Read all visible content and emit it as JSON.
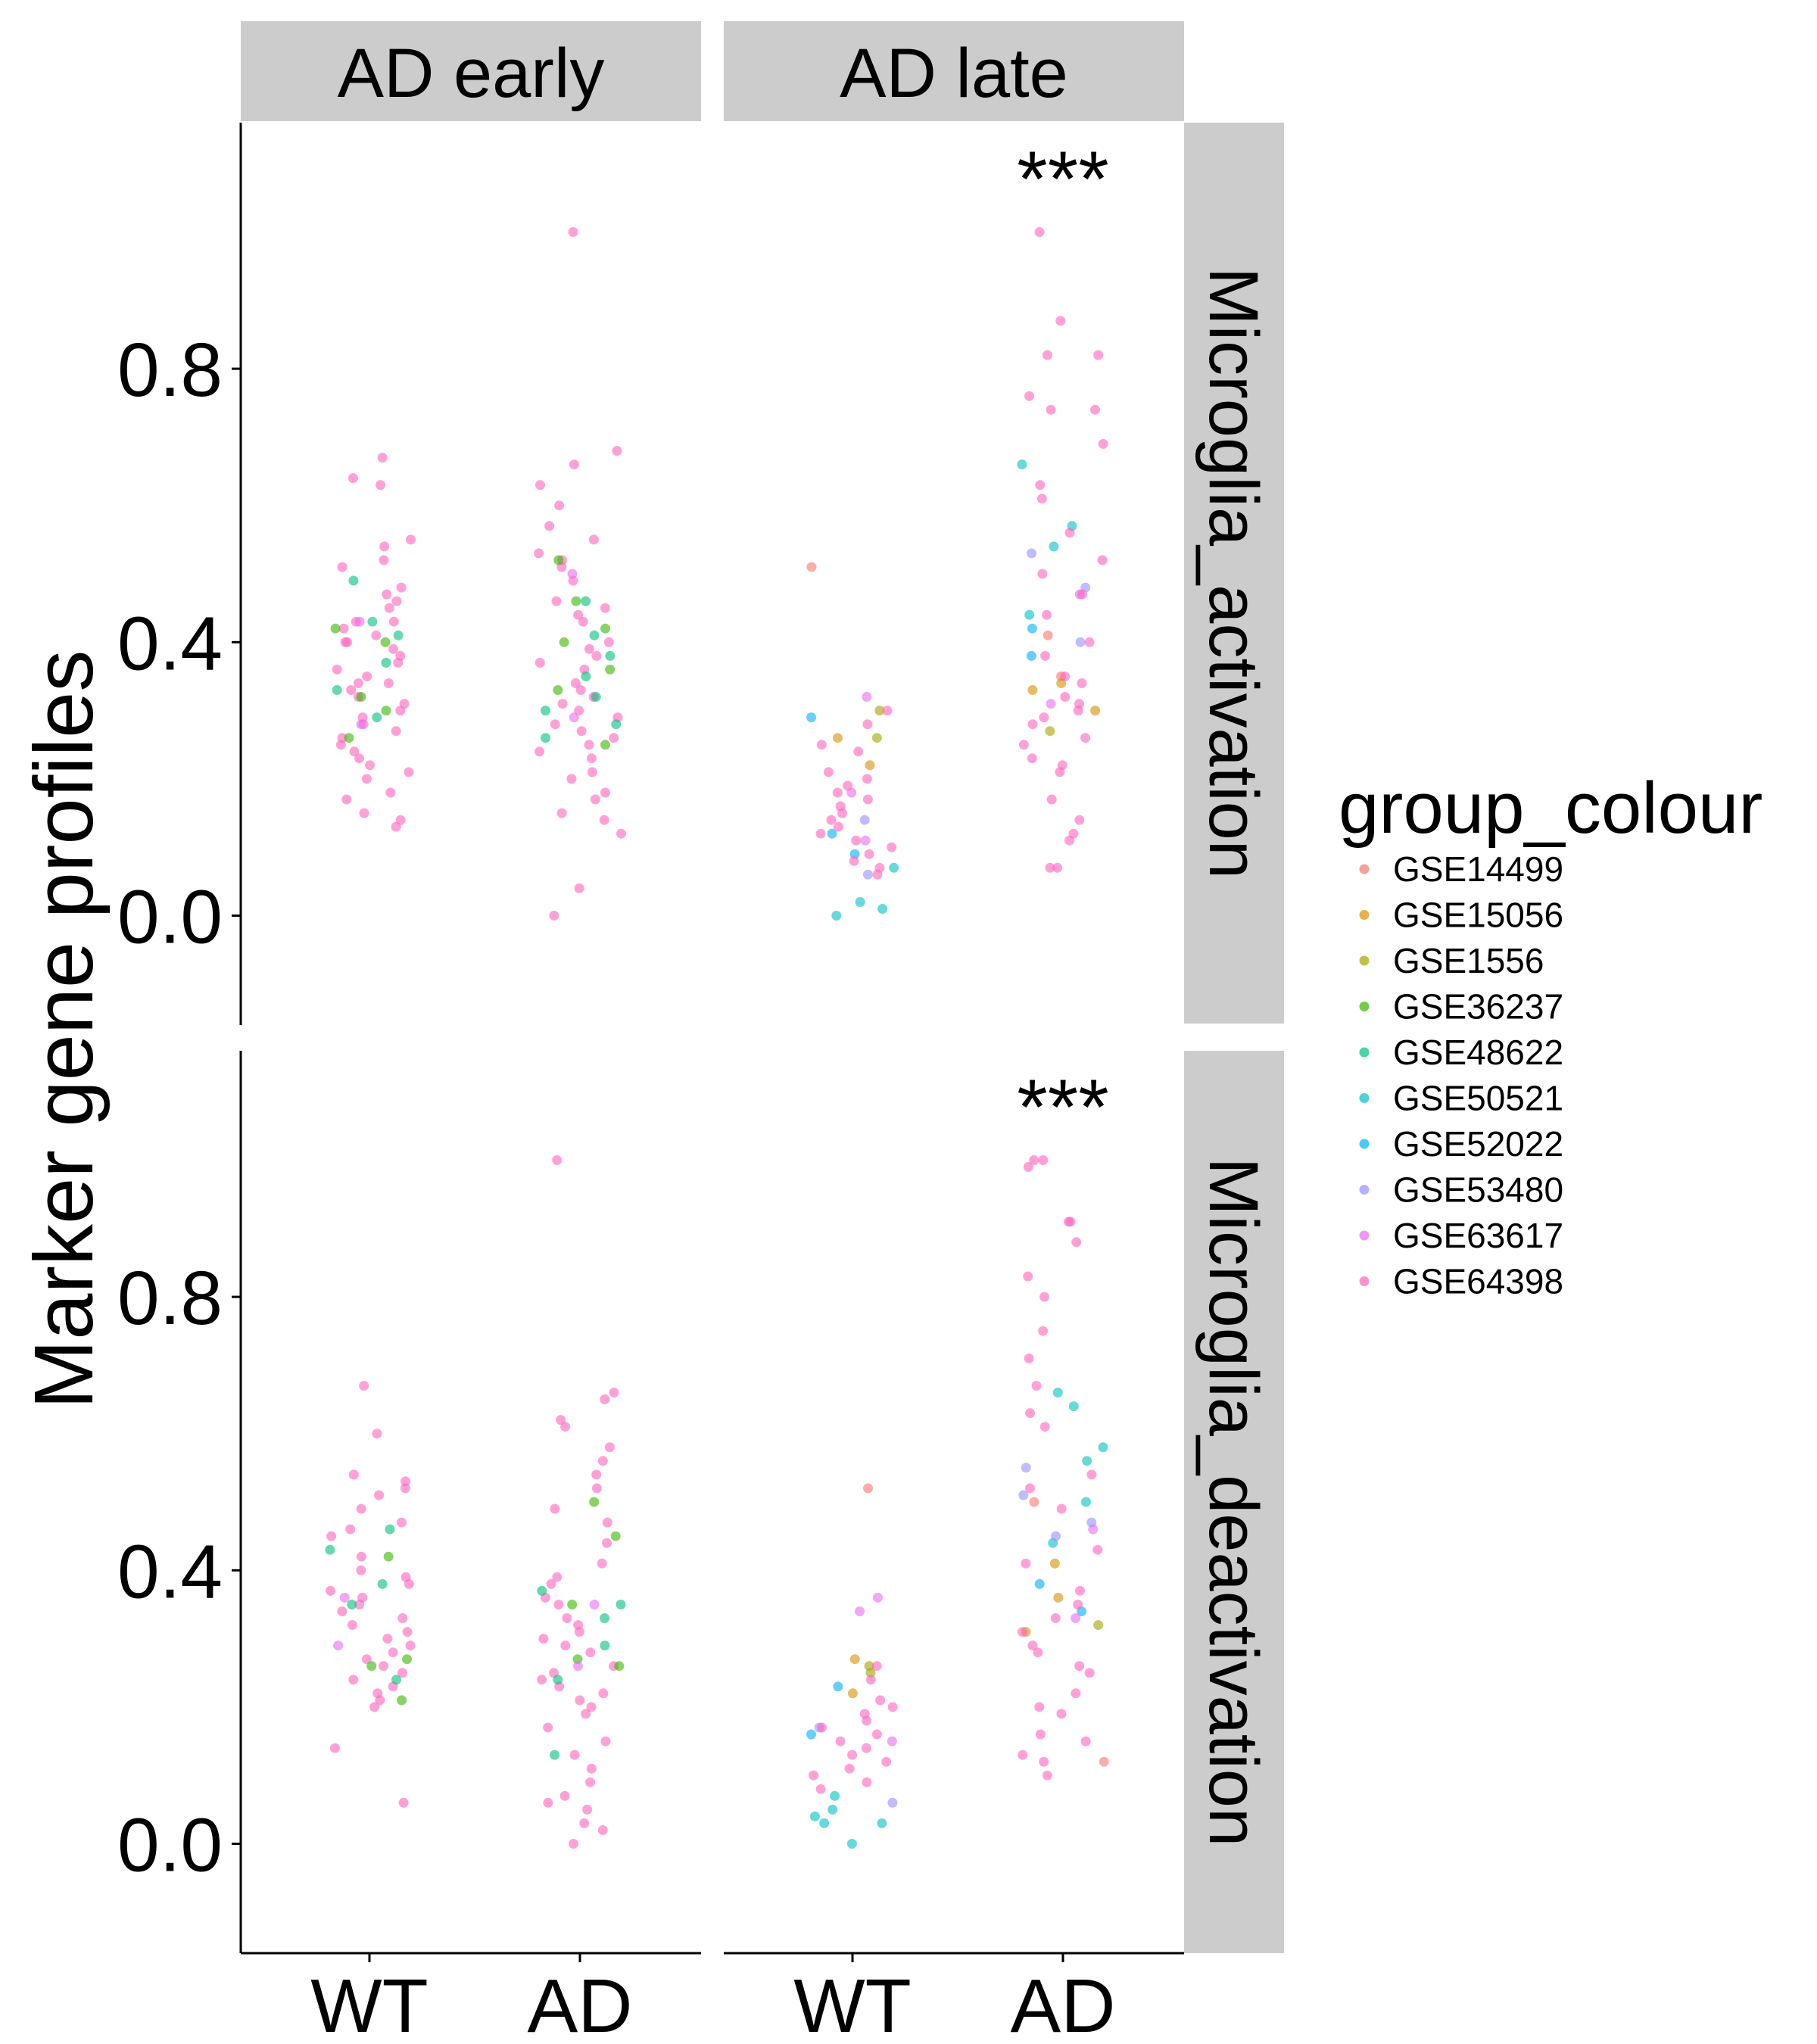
{
  "chart_data": {
    "type": "scatter",
    "ylabel": "Marker gene profiles",
    "x_categories": [
      "WT",
      "AD"
    ],
    "column_facets": [
      "AD early",
      "AD late"
    ],
    "row_facets": [
      "Microglia_activation",
      "Microglia_deactivation"
    ],
    "y_ticks": [
      "0.0",
      "0.4",
      "0.8"
    ],
    "y_tick_values": [
      0.0,
      0.4,
      0.8
    ],
    "ylim": [
      -0.16,
      1.16
    ],
    "significance_marker": "***",
    "legend": {
      "title": "group_colour",
      "position": "right",
      "entries": [
        {
          "label": "GSE14499",
          "color": "#F8766D"
        },
        {
          "label": "GSE15056",
          "color": "#D89000"
        },
        {
          "label": "GSE1556",
          "color": "#A3A500"
        },
        {
          "label": "GSE36237",
          "color": "#39B600"
        },
        {
          "label": "GSE48622",
          "color": "#00BF7D"
        },
        {
          "label": "GSE50521",
          "color": "#00BFC4"
        },
        {
          "label": "GSE52022",
          "color": "#00B0F6"
        },
        {
          "label": "GSE53480",
          "color": "#9590FF"
        },
        {
          "label": "GSE63617",
          "color": "#E76BF3"
        },
        {
          "label": "GSE64398",
          "color": "#FF62BC"
        }
      ]
    },
    "panels": [
      {
        "row": "Microglia_activation",
        "col": "AD early",
        "significance": "",
        "groups": [
          {
            "x": "WT",
            "series": {
              "GSE64398": [
                0.67,
                0.64,
                0.63,
                0.55,
                0.54,
                0.52,
                0.51,
                0.48,
                0.47,
                0.46,
                0.45,
                0.43,
                0.43,
                0.42,
                0.41,
                0.4,
                0.4,
                0.39,
                0.38,
                0.37,
                0.36,
                0.35,
                0.34,
                0.34,
                0.33,
                0.32,
                0.31,
                0.3,
                0.29,
                0.28,
                0.27,
                0.26,
                0.25,
                0.24,
                0.23,
                0.22,
                0.21,
                0.2,
                0.18,
                0.17,
                0.15,
                0.14,
                0.13
              ],
              "GSE48622": [
                0.49,
                0.43,
                0.41,
                0.37,
                0.33,
                0.29
              ],
              "GSE36237": [
                0.42,
                0.4,
                0.32,
                0.3,
                0.26
              ],
              "GSE63617": [
                0.43,
                0.28
              ]
            }
          },
          {
            "x": "AD",
            "series": {
              "GSE64398": [
                1.0,
                0.68,
                0.66,
                0.63,
                0.6,
                0.57,
                0.55,
                0.53,
                0.52,
                0.51,
                0.49,
                0.46,
                0.45,
                0.44,
                0.43,
                0.4,
                0.39,
                0.38,
                0.37,
                0.36,
                0.34,
                0.33,
                0.32,
                0.31,
                0.3,
                0.29,
                0.28,
                0.27,
                0.26,
                0.25,
                0.24,
                0.23,
                0.21,
                0.2,
                0.18,
                0.17,
                0.15,
                0.14,
                0.12,
                0.04,
                0.0
              ],
              "GSE48622": [
                0.46,
                0.41,
                0.38,
                0.35,
                0.32,
                0.3,
                0.28,
                0.26
              ],
              "GSE36237": [
                0.52,
                0.46,
                0.42,
                0.4,
                0.36,
                0.33,
                0.25
              ],
              "GSE63617": [
                0.5,
                0.29
              ]
            }
          }
        ]
      },
      {
        "row": "Microglia_activation",
        "col": "AD late",
        "significance": "***",
        "groups": [
          {
            "x": "WT",
            "series": {
              "GSE14499": [
                0.51
              ],
              "GSE15056": [
                0.26,
                0.22
              ],
              "GSE1556": [
                0.3,
                0.26
              ],
              "GSE50521": [
                0.07,
                0.02,
                0.01,
                0.0
              ],
              "GSE52022": [
                0.29,
                0.12,
                0.09
              ],
              "GSE53480": [
                0.14,
                0.06
              ],
              "GSE63617": [
                0.32,
                0.18,
                0.11
              ],
              "GSE64398": [
                0.3,
                0.28,
                0.25,
                0.24,
                0.21,
                0.2,
                0.19,
                0.18,
                0.17,
                0.16,
                0.15,
                0.14,
                0.13,
                0.12,
                0.11,
                0.1,
                0.09,
                0.08,
                0.07,
                0.06
              ]
            }
          },
          {
            "x": "AD",
            "series": {
              "GSE14499": [
                0.41,
                0.35
              ],
              "GSE15056": [
                0.34,
                0.33,
                0.3
              ],
              "GSE1556": [
                0.27
              ],
              "GSE50521": [
                0.66,
                0.57,
                0.54,
                0.44
              ],
              "GSE52022": [
                0.42,
                0.38
              ],
              "GSE53480": [
                0.53,
                0.48,
                0.4
              ],
              "GSE63617": [
                0.47,
                0.31
              ],
              "GSE64398": [
                1.0,
                0.87,
                0.82,
                0.82,
                0.76,
                0.74,
                0.74,
                0.69,
                0.63,
                0.61,
                0.56,
                0.52,
                0.5,
                0.47,
                0.44,
                0.4,
                0.38,
                0.35,
                0.34,
                0.32,
                0.31,
                0.3,
                0.29,
                0.28,
                0.26,
                0.25,
                0.23,
                0.22,
                0.21,
                0.17,
                0.14,
                0.12,
                0.11,
                0.07,
                0.07
              ]
            }
          }
        ]
      },
      {
        "row": "Microglia_deactivation",
        "col": "AD early",
        "significance": "",
        "groups": [
          {
            "x": "WT",
            "series": {
              "GSE64398": [
                0.67,
                0.6,
                0.54,
                0.53,
                0.52,
                0.51,
                0.49,
                0.47,
                0.46,
                0.45,
                0.42,
                0.4,
                0.39,
                0.38,
                0.37,
                0.36,
                0.35,
                0.34,
                0.33,
                0.32,
                0.31,
                0.3,
                0.29,
                0.28,
                0.27,
                0.26,
                0.25,
                0.24,
                0.23,
                0.22,
                0.21,
                0.2,
                0.14,
                0.06
              ],
              "GSE48622": [
                0.46,
                0.43,
                0.38,
                0.35,
                0.24
              ],
              "GSE36237": [
                0.42,
                0.27,
                0.26,
                0.21
              ],
              "GSE63617": [
                0.36,
                0.29
              ]
            }
          },
          {
            "x": "AD",
            "series": {
              "GSE64398": [
                1.0,
                0.66,
                0.65,
                0.62,
                0.61,
                0.58,
                0.56,
                0.54,
                0.52,
                0.49,
                0.47,
                0.44,
                0.41,
                0.39,
                0.38,
                0.36,
                0.35,
                0.33,
                0.32,
                0.31,
                0.3,
                0.29,
                0.28,
                0.26,
                0.25,
                0.24,
                0.23,
                0.22,
                0.21,
                0.2,
                0.19,
                0.17,
                0.15,
                0.13,
                0.11,
                0.09,
                0.07,
                0.06,
                0.05,
                0.03,
                0.02,
                0.0
              ],
              "GSE48622": [
                0.37,
                0.35,
                0.33,
                0.29,
                0.24,
                0.13
              ],
              "GSE36237": [
                0.5,
                0.45,
                0.35,
                0.27,
                0.26
              ],
              "GSE63617": [
                0.35,
                0.26
              ]
            }
          }
        ]
      },
      {
        "row": "Microglia_deactivation",
        "col": "AD late",
        "significance": "***",
        "groups": [
          {
            "x": "WT",
            "series": {
              "GSE14499": [
                0.52
              ],
              "GSE15056": [
                0.27,
                0.22
              ],
              "GSE1556": [
                0.26,
                0.25
              ],
              "GSE50521": [
                0.07,
                0.05,
                0.04,
                0.03,
                0.03,
                0.0
              ],
              "GSE52022": [
                0.23,
                0.16
              ],
              "GSE53480": [
                0.17,
                0.06
              ],
              "GSE63617": [
                0.36,
                0.34,
                0.15
              ],
              "GSE64398": [
                0.26,
                0.24,
                0.21,
                0.2,
                0.19,
                0.18,
                0.17,
                0.16,
                0.15,
                0.14,
                0.13,
                0.12,
                0.11,
                0.1,
                0.09,
                0.08
              ]
            }
          },
          {
            "x": "AD",
            "series": {
              "GSE14499": [
                0.5,
                0.12
              ],
              "GSE15056": [
                0.41,
                0.36,
                0.31
              ],
              "GSE1556": [
                0.32
              ],
              "GSE50521": [
                0.66,
                0.64,
                0.58,
                0.56,
                0.5,
                0.44
              ],
              "GSE52022": [
                0.38,
                0.34
              ],
              "GSE53480": [
                0.55,
                0.51,
                0.47,
                0.45
              ],
              "GSE63617": [
                0.46,
                0.33
              ],
              "GSE64398": [
                1.0,
                1.0,
                0.99,
                0.91,
                0.91,
                0.88,
                0.83,
                0.8,
                0.75,
                0.71,
                0.67,
                0.63,
                0.61,
                0.54,
                0.52,
                0.49,
                0.43,
                0.41,
                0.37,
                0.35,
                0.33,
                0.31,
                0.29,
                0.28,
                0.26,
                0.25,
                0.22,
                0.2,
                0.19,
                0.16,
                0.15,
                0.13,
                0.12,
                0.1
              ]
            }
          }
        ]
      }
    ]
  }
}
